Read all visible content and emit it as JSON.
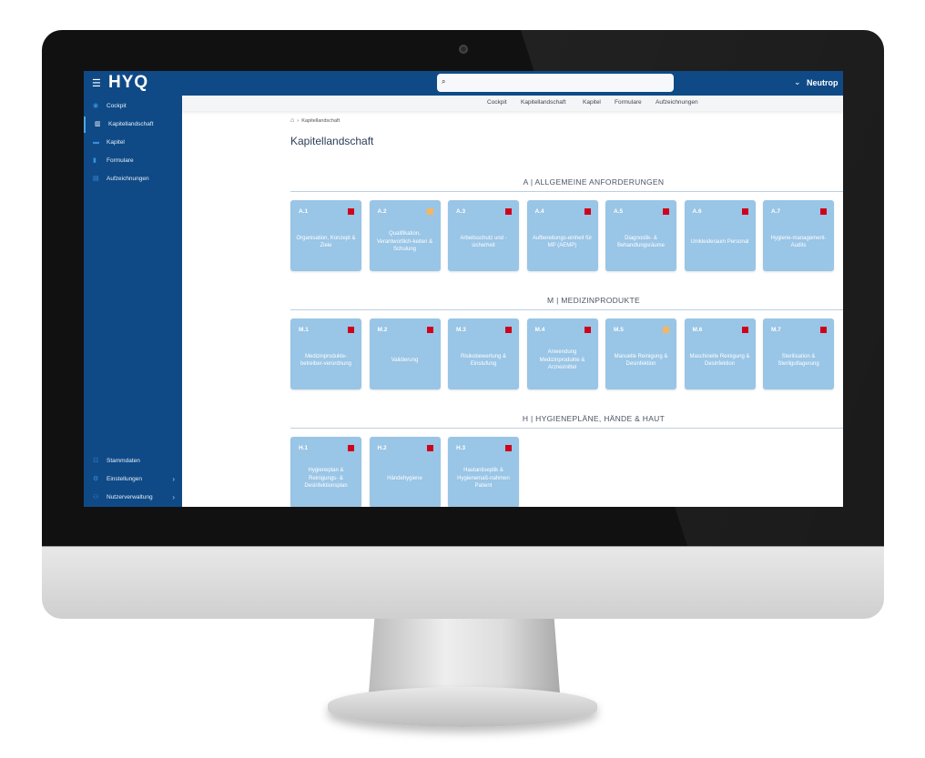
{
  "colors": {
    "primary": "#0f4a87",
    "card": "#99c5e6",
    "status_red": "#d0021b",
    "status_amber": "#f7b55e"
  },
  "header": {
    "logo": "HYQ",
    "menu_icon": "hamburger-icon",
    "search_icon": "search-icon",
    "search_placeholder": "",
    "user_label": "Neutrop"
  },
  "sidebar": {
    "items": [
      {
        "label": "Cockpit",
        "icon": "dashboard-icon"
      },
      {
        "label": "Kapitellandschaft",
        "icon": "map-icon",
        "active": true
      },
      {
        "label": "Kapitel",
        "icon": "book-icon"
      },
      {
        "label": "Formulare",
        "icon": "file-icon"
      },
      {
        "label": "Aufzeichnungen",
        "icon": "archive-icon"
      }
    ],
    "bottom": [
      {
        "label": "Stammdaten",
        "icon": "list-icon"
      },
      {
        "label": "Einstellungen",
        "icon": "gear-icon"
      },
      {
        "label": "Nutzerverwaltung",
        "icon": "users-icon"
      }
    ]
  },
  "subnav": [
    "Cockpit",
    "Kapitellandschaft",
    "Kapitel",
    "Formulare",
    "Aufzeichnungen"
  ],
  "breadcrumb": {
    "current": "Kapitellandschaft"
  },
  "page_title": "Kapitellandschaft",
  "sections": [
    {
      "title": "A | ALLGEMEINE ANFORDERUNGEN",
      "cards": [
        {
          "code": "A.1",
          "label": "Organisation, Konzept & Ziele",
          "status": "red"
        },
        {
          "code": "A.2",
          "label": "Qualifikation, Verantwortlich-keiten & Schulung",
          "status": "amber"
        },
        {
          "code": "A.3",
          "label": "Arbeitsschutz und -sicherheit",
          "status": "red"
        },
        {
          "code": "A.4",
          "label": "Aufbereitungs-einheit für MP (AEMP)",
          "status": "red"
        },
        {
          "code": "A.5",
          "label": "Diagnostik- & Behandlungsräume",
          "status": "red"
        },
        {
          "code": "A.6",
          "label": "Umkleideraum Personal",
          "status": "red"
        },
        {
          "code": "A.7",
          "label": "Hygiene-management-Audits",
          "status": "red"
        }
      ]
    },
    {
      "title": "M | MEDIZINPRODUKTE",
      "cards": [
        {
          "code": "M.1",
          "label": "Medizinprodukte-betreiber-verordnung",
          "status": "red"
        },
        {
          "code": "M.2",
          "label": "Validierung",
          "status": "red"
        },
        {
          "code": "M.3",
          "label": "Risikobewertung & Einstufung",
          "status": "red"
        },
        {
          "code": "M.4",
          "label": "Anwendung Medizinprodukte & Arzneimittel",
          "status": "red"
        },
        {
          "code": "M.5",
          "label": "Manuelle Reinigung & Desinfektion",
          "status": "amber"
        },
        {
          "code": "M.6",
          "label": "Maschinelle Reinigung & Desinfektion",
          "status": "red"
        },
        {
          "code": "M.7",
          "label": "Sterilisation & Sterilgutlagerung",
          "status": "red"
        }
      ]
    },
    {
      "title": "H | HYGIENEPLÄNE, HÄNDE & HAUT",
      "cards": [
        {
          "code": "H.1",
          "label": "Hygieneplan & Reinigungs- & Desinfektionsplan",
          "status": "red"
        },
        {
          "code": "H.2",
          "label": "Händehygiene",
          "status": "red"
        },
        {
          "code": "H.3",
          "label": "Hautantiseptik & Hygienemaß-nahmen Patient",
          "status": "red"
        }
      ]
    }
  ]
}
